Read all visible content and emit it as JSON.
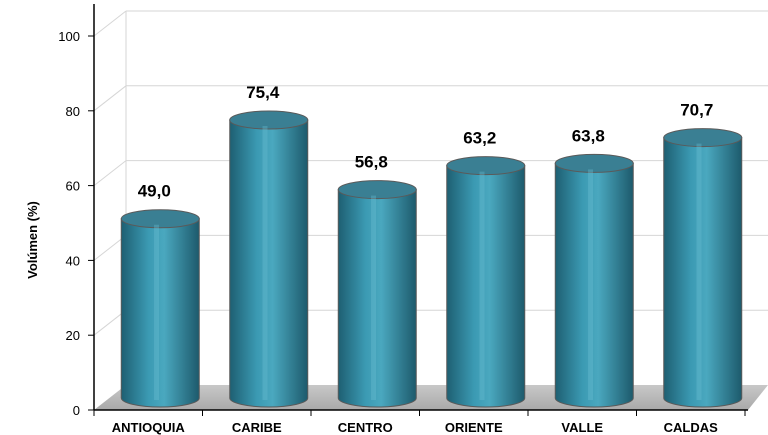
{
  "chart_data": {
    "type": "bar",
    "categories": [
      "ANTIOQUIA",
      "CARIBE",
      "CENTRO",
      "ORIENTE",
      "VALLE",
      "CALDAS"
    ],
    "values": [
      49.0,
      75.4,
      56.8,
      63.2,
      63.8,
      70.7
    ],
    "value_labels": [
      "49,0",
      "75,4",
      "56,8",
      "63,2",
      "63,8",
      "70,7"
    ],
    "ylabel": "Volúmen (%)",
    "ylim": [
      0,
      100
    ],
    "yticks": [
      "0",
      "20",
      "40",
      "60",
      "80",
      "100"
    ],
    "grid": true,
    "style": "3d-cylinder",
    "colors": {
      "bar": "#2f8aa2",
      "bar_dark": "#1f6478",
      "bar_light": "#5fb3c8",
      "top": "#3a7f93",
      "floor": "#b9b9b9",
      "grid": "#d6d6d6"
    }
  }
}
